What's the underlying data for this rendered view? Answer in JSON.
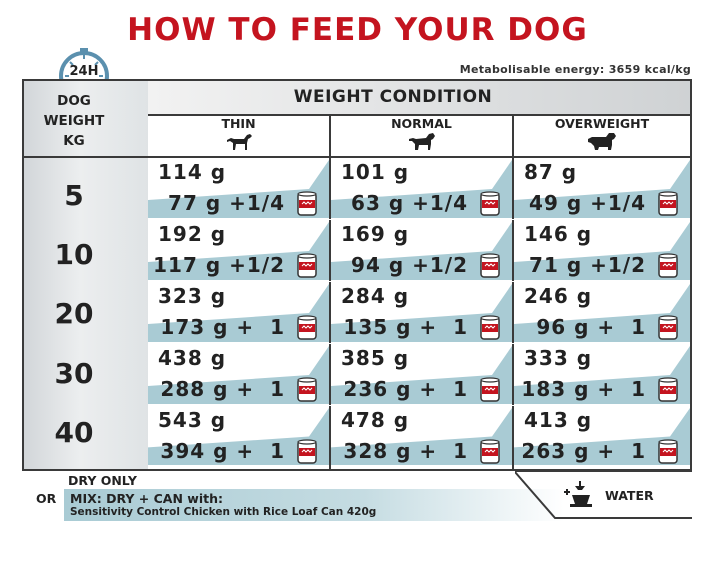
{
  "title": "HOW TO FEED YOUR DOG",
  "clock_label": "24H",
  "energy_note": "Metabolisable energy: 3659 kcal/kg",
  "weight_header": [
    "DOG",
    "WEIGHT",
    "KG"
  ],
  "weight_condition_title": "WEIGHT CONDITION",
  "conditions": [
    {
      "label": "THIN",
      "icon": "thin-dog-icon"
    },
    {
      "label": "NORMAL",
      "icon": "normal-dog-icon"
    },
    {
      "label": "OVERWEIGHT",
      "icon": "overweight-dog-icon"
    }
  ],
  "rows": [
    {
      "weight": "5",
      "cells": [
        {
          "dry": "114 g",
          "mix": "77 g +1/4"
        },
        {
          "dry": "101 g",
          "mix": "63 g +1/4"
        },
        {
          "dry": "87 g",
          "mix": "49 g +1/4"
        }
      ]
    },
    {
      "weight": "10",
      "cells": [
        {
          "dry": "192 g",
          "mix": "117 g +1/2"
        },
        {
          "dry": "169 g",
          "mix": "94 g +1/2"
        },
        {
          "dry": "146 g",
          "mix": "71 g +1/2"
        }
      ]
    },
    {
      "weight": "20",
      "cells": [
        {
          "dry": "323 g",
          "mix": "173 g +  1"
        },
        {
          "dry": "284 g",
          "mix": "135 g +  1"
        },
        {
          "dry": "246 g",
          "mix": "96 g +  1"
        }
      ]
    },
    {
      "weight": "30",
      "cells": [
        {
          "dry": "438 g",
          "mix": "288 g +  1"
        },
        {
          "dry": "385 g",
          "mix": "236 g +  1"
        },
        {
          "dry": "333 g",
          "mix": "183 g +  1"
        }
      ]
    },
    {
      "weight": "40",
      "cells": [
        {
          "dry": "543 g",
          "mix": "394 g +  1"
        },
        {
          "dry": "478 g",
          "mix": "328 g +  1"
        },
        {
          "dry": "413 g",
          "mix": "263 g +  1"
        }
      ]
    }
  ],
  "footer": {
    "dry_only": "DRY ONLY",
    "or": "OR",
    "mix_label": "MIX: DRY + CAN with:",
    "can_name": "Sensitivity Control Chicken with Rice Loaf Can 420g",
    "water": "WATER"
  },
  "colors": {
    "title_red": "#c4141f",
    "band_blue": "#a9cbd4",
    "can_red": "#c4141f",
    "border": "#3a3a3a"
  }
}
